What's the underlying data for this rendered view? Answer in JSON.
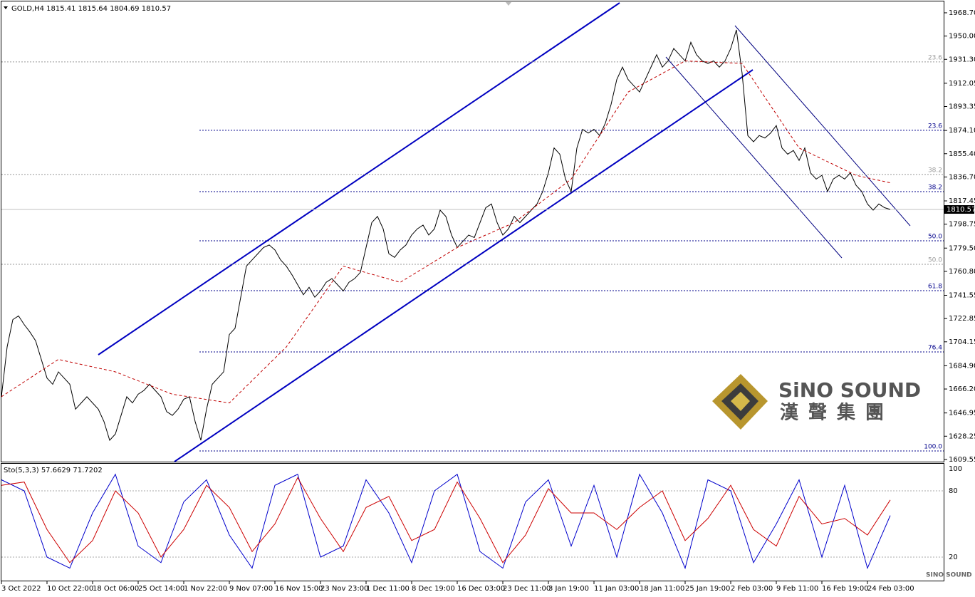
{
  "chart_data": [
    {
      "type": "line",
      "title": "GOLD,H4  1815.41 1815.64 1804.69 1810.57",
      "categories": [
        "3 Oct 2022",
        null,
        null,
        null,
        null,
        null,
        null,
        null,
        "10 Oct 22:00",
        null,
        null,
        null,
        null,
        null,
        null,
        null,
        "18 Oct 06:00",
        null,
        null,
        null,
        null,
        null,
        null,
        null,
        "25 Oct 14:00",
        null,
        null,
        null,
        null,
        null,
        null,
        null,
        "1 Nov 22:00",
        null,
        null,
        null,
        null,
        null,
        null,
        null,
        "9 Nov 07:00",
        null,
        null,
        null,
        null,
        null,
        null,
        null,
        "16 Nov 15:00",
        null,
        null,
        null,
        null,
        null,
        null,
        null,
        "23 Nov 23:00",
        null,
        null,
        null,
        null,
        null,
        null,
        null,
        "1 Dec 11:00",
        null,
        null,
        null,
        null,
        null,
        null,
        null,
        "8 Dec 19:00",
        null,
        null,
        null,
        null,
        null,
        null,
        null,
        "16 Dec 03:00",
        null,
        null,
        null,
        null,
        null,
        null,
        null,
        "23 Dec 11:00",
        null,
        null,
        null,
        null,
        null,
        null,
        null,
        "3 Jan 19:00",
        null,
        null,
        null,
        null,
        null,
        null,
        null,
        "11 Jan 03:00",
        null,
        null,
        null,
        null,
        null,
        null,
        null,
        "18 Jan 11:00",
        null,
        null,
        null,
        null,
        null,
        null,
        null,
        "25 Jan 19:00",
        null,
        null,
        null,
        null,
        null,
        null,
        null,
        "2 Feb 03:00",
        null,
        null,
        null,
        null,
        null,
        null,
        null,
        "9 Feb 11:00",
        null,
        null,
        null,
        null,
        null,
        null,
        null,
        "16 Feb 19:00",
        null,
        null,
        null,
        null,
        null,
        null,
        null,
        "24 Feb 03:00",
        null,
        null,
        null,
        null
      ],
      "series": [
        {
          "color": "#000000",
          "values": [
            1660,
            1700,
            1722,
            1725,
            1718,
            1712,
            1705,
            1690,
            1675,
            1670,
            1680,
            1675,
            1670,
            1650,
            1655,
            1660,
            1655,
            1650,
            1640,
            1625,
            1630,
            1645,
            1660,
            1655,
            1662,
            1665,
            1670,
            1665,
            1660,
            1648,
            1645,
            1650,
            1658,
            1660,
            1640,
            1625,
            1650,
            1670,
            1675,
            1680,
            1710,
            1715,
            1740,
            1765,
            1770,
            1775,
            1780,
            1782,
            1778,
            1770,
            1765,
            1758,
            1750,
            1742,
            1748,
            1740,
            1745,
            1752,
            1755,
            1750,
            1745,
            1752,
            1755,
            1760,
            1780,
            1800,
            1805,
            1795,
            1775,
            1772,
            1778,
            1782,
            1790,
            1795,
            1798,
            1790,
            1795,
            1810,
            1805,
            1790,
            1780,
            1785,
            1790,
            1788,
            1800,
            1812,
            1815,
            1800,
            1790,
            1795,
            1805,
            1800,
            1805,
            1810,
            1815,
            1825,
            1840,
            1860,
            1855,
            1835,
            1825,
            1860,
            1875,
            1872,
            1875,
            1870,
            1880,
            1895,
            1915,
            1925,
            1915,
            1910,
            1905,
            1915,
            1925,
            1935,
            1925,
            1930,
            1940,
            1935,
            1930,
            1945,
            1935,
            1930,
            1928,
            1930,
            1925,
            1930,
            1940,
            1955,
            1920,
            1870,
            1865,
            1870,
            1868,
            1872,
            1878,
            1860,
            1855,
            1858,
            1850,
            1860,
            1840,
            1835,
            1838,
            1825,
            1835,
            1838,
            1835,
            1840,
            1830,
            1825,
            1815,
            1810,
            1815,
            1812,
            1810.57
          ]
        },
        {
          "color": "#c00000",
          "x": [
            0,
            10,
            20,
            30,
            40,
            50,
            60,
            70,
            80,
            90,
            100,
            110,
            120,
            130,
            140,
            150,
            156
          ],
          "values": [
            1660,
            1690,
            1680,
            1662,
            1655,
            1700,
            1765,
            1752,
            1780,
            1800,
            1835,
            1905,
            1930,
            1928,
            1860,
            1838,
            1832
          ]
        }
      ],
      "ylim": [
        1607.8,
        1976.7
      ],
      "yticks": [
        {
          "value": 1968.7,
          "label": "1968.70"
        },
        {
          "value": 1950,
          "label": "1950.00"
        },
        {
          "value": 1931.3,
          "label": "1931.30"
        },
        {
          "value": 1912.05,
          "label": "1912.05"
        },
        {
          "value": 1893.35,
          "label": "1893.35"
        },
        {
          "value": 1874.1,
          "label": "1874.10"
        },
        {
          "value": 1855.4,
          "label": "1855.40"
        },
        {
          "value": 1836.7,
          "label": "1836.70"
        },
        {
          "value": 1817.45,
          "label": "1817.45"
        },
        {
          "value": 1798.75,
          "label": "1798.75"
        },
        {
          "value": 1779.5,
          "label": "1779.50"
        },
        {
          "value": 1760.8,
          "label": "1760.80"
        },
        {
          "value": 1741.55,
          "label": "1741.55"
        },
        {
          "value": 1722.85,
          "label": "1722.85"
        },
        {
          "value": 1704.15,
          "label": "1704.15"
        },
        {
          "value": 1684.9,
          "label": "1684.90"
        },
        {
          "value": 1666.2,
          "label": "1666.20"
        },
        {
          "value": 1646.95,
          "label": "1646.95"
        },
        {
          "value": 1628.25,
          "label": "1628.25"
        },
        {
          "value": 1609.55,
          "label": "1609.55"
        }
      ],
      "last_price": {
        "value": 1810.57,
        "label": "1810.57"
      },
      "levels": [
        {
          "value": 1929.2,
          "label": "23.6",
          "color": "#999999"
        },
        {
          "value": 1838.7,
          "label": "38.2",
          "color": "#999999"
        },
        {
          "value": 1766.5,
          "label": "50.0",
          "color": "#999999"
        },
        {
          "value": 1874.2,
          "label": "23.6",
          "color": "#00008b"
        },
        {
          "value": 1824.9,
          "label": "38.2",
          "color": "#00008b"
        },
        {
          "value": 1785.4,
          "label": "50.0",
          "color": "#00008b"
        },
        {
          "value": 1745.3,
          "label": "61.8",
          "color": "#00008b"
        },
        {
          "value": 1696.0,
          "label": "76.4",
          "color": "#00008b"
        },
        {
          "value": 1616.4,
          "label": "100.0",
          "color": "#00008b"
        }
      ]
    },
    {
      "type": "line",
      "title": "Sto(5,3,3) 57.6629 71.7202",
      "series": [
        {
          "color": "#0000cc",
          "x": [
            0,
            4,
            8,
            12,
            16,
            20,
            24,
            28,
            32,
            36,
            40,
            44,
            48,
            52,
            56,
            60,
            64,
            68,
            72,
            76,
            80,
            84,
            88,
            92,
            96,
            100,
            104,
            108,
            112,
            116,
            120,
            124,
            128,
            132,
            136,
            140,
            144,
            148,
            152,
            156
          ],
          "values": [
            90,
            80,
            20,
            10,
            60,
            95,
            30,
            15,
            70,
            90,
            40,
            10,
            85,
            95,
            20,
            30,
            90,
            60,
            15,
            80,
            95,
            25,
            10,
            70,
            90,
            30,
            85,
            20,
            95,
            60,
            10,
            90,
            80,
            15,
            50,
            90,
            20,
            85,
            10,
            57.66
          ]
        },
        {
          "color": "#cc0000",
          "x": [
            0,
            4,
            8,
            12,
            16,
            20,
            24,
            28,
            32,
            36,
            40,
            44,
            48,
            52,
            56,
            60,
            64,
            68,
            72,
            76,
            80,
            84,
            88,
            92,
            96,
            100,
            104,
            108,
            112,
            116,
            120,
            124,
            128,
            132,
            136,
            140,
            144,
            148,
            152,
            156
          ],
          "values": [
            85,
            88,
            45,
            15,
            35,
            80,
            60,
            20,
            45,
            85,
            65,
            25,
            50,
            92,
            55,
            25,
            65,
            75,
            35,
            45,
            88,
            55,
            15,
            40,
            82,
            60,
            60,
            45,
            65,
            80,
            35,
            55,
            85,
            45,
            30,
            75,
            50,
            55,
            40,
            71.72
          ]
        }
      ],
      "ylim": [
        0,
        100
      ],
      "yticks": [
        20,
        80,
        100
      ]
    }
  ],
  "logo": {
    "name": "SiNO SOUND",
    "chinese": "漢聲集團",
    "watermark": "SINO SOUND"
  }
}
